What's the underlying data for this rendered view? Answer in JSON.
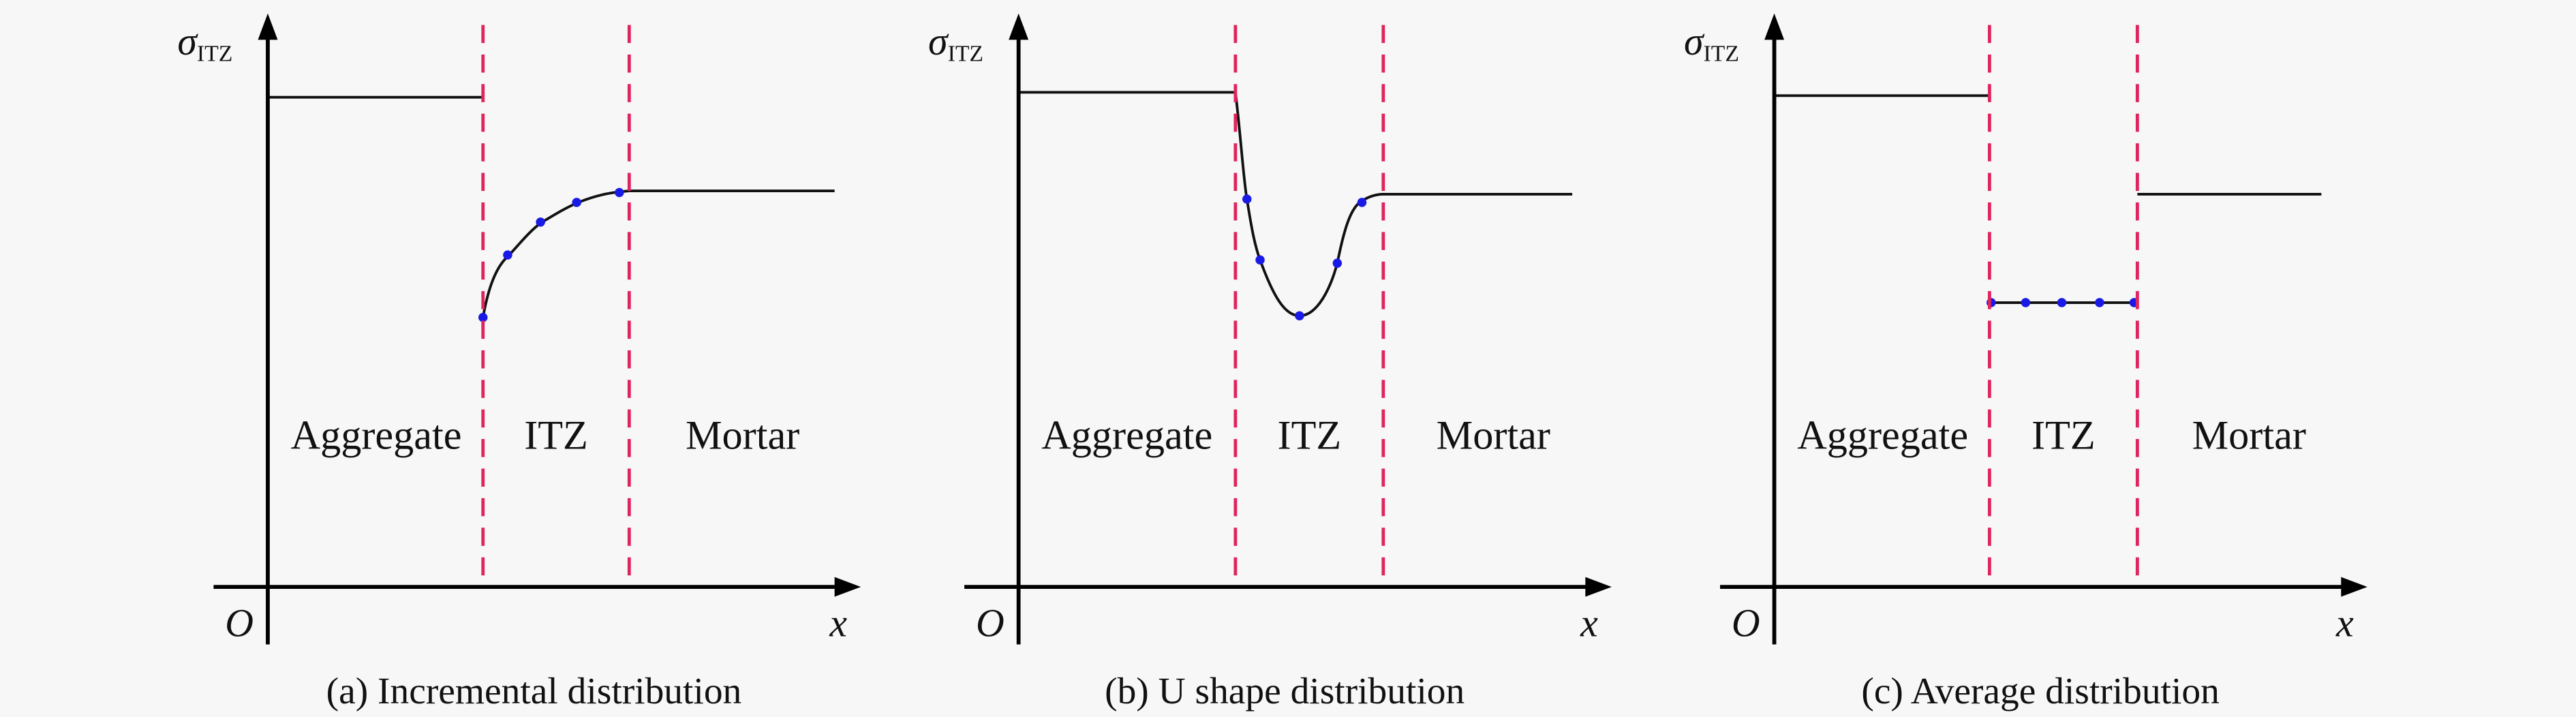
{
  "panels": [
    {
      "y_label": "σ",
      "y_label_sub": "ITZ",
      "origin": "O",
      "x_label": "x",
      "regions": [
        "Aggregate",
        "ITZ",
        "Mortar"
      ],
      "caption": "(a) Incremental distribution"
    },
    {
      "y_label": "σ",
      "y_label_sub": "ITZ",
      "origin": "O",
      "x_label": "x",
      "regions": [
        "Aggregate",
        "ITZ",
        "Mortar"
      ],
      "caption": "(b) U shape distribution"
    },
    {
      "y_label": "σ",
      "y_label_sub": "ITZ",
      "origin": "O",
      "x_label": "x",
      "regions": [
        "Aggregate",
        "ITZ",
        "Mortar"
      ],
      "caption": "(c) Average distribution"
    }
  ]
}
